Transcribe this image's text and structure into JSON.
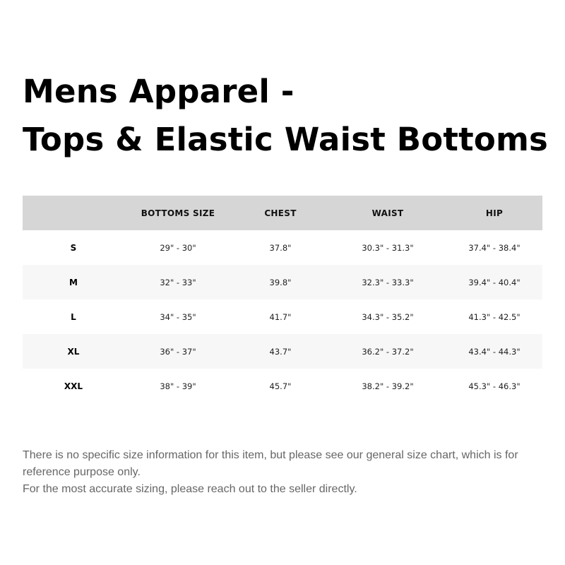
{
  "title": {
    "line1": "Mens Apparel -",
    "line2": "Tops & Elastic Waist Bottoms"
  },
  "table": {
    "headers": [
      "",
      "BOTTOMS SIZE",
      "CHEST",
      "WAIST",
      "HIP"
    ],
    "rows": [
      [
        "S",
        "29\" - 30\"",
        "37.8\"",
        "30.3\" - 31.3\"",
        "37.4\" - 38.4\""
      ],
      [
        "M",
        "32\" - 33\"",
        "39.8\"",
        "32.3\" - 33.3\"",
        "39.4\" - 40.4\""
      ],
      [
        "L",
        "34\" - 35\"",
        "41.7\"",
        "34.3\" - 35.2\"",
        "41.3\" - 42.5\""
      ],
      [
        "XL",
        "36\" - 37\"",
        "43.7\"",
        "36.2\" - 37.2\"",
        "43.4\" - 44.3\""
      ],
      [
        "XXL",
        "38\" - 39\"",
        "45.7\"",
        "38.2\" - 39.2\"",
        "45.3\" - 46.3\""
      ]
    ]
  },
  "note": {
    "line1": "There is no specific size information for this item, but please see our general size chart, which is for reference purpose only.",
    "line2": "For the most accurate sizing, please reach out to the seller directly."
  },
  "colors": {
    "header_bg": "#d6d6d6",
    "stripe_bg": "#f7f7f7",
    "note_text": "#666666"
  }
}
